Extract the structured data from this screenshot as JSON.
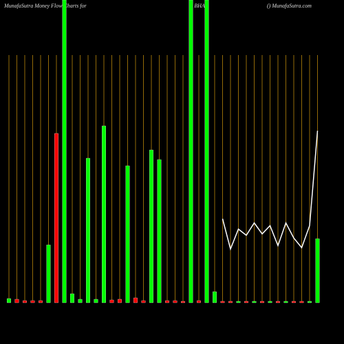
{
  "chart_data": {
    "type": "bar",
    "title": "MunafaSutra  Money Flow  Charts for",
    "symbol": "BHA",
    "source": "() MunafaSutra.com",
    "ylim": [
      0,
      440
    ],
    "series": [
      {
        "name": "Money Flow",
        "colors": [
          "#00ff00",
          "#ff0000",
          "#ff0000",
          "#ff0000",
          "#ff0000",
          "#00ff00",
          "#ff0000",
          "#00ff00",
          "#00ff00",
          "#00ff00",
          "#00ff00",
          "#00ff00",
          "#00ff00",
          "#ff0000",
          "#ff0000",
          "#00ff00",
          "#ff0000",
          "#ff0000",
          "#00ff00",
          "#00ff00",
          "#ff0000",
          "#ff0000",
          "#ff0000",
          "#00ff00",
          "#ff0000",
          "#00ff00",
          "#00ff00",
          "#ff0000",
          "#ff0000",
          "#00ff00",
          "#ff0000",
          "#00ff00",
          "#ff0000",
          "#00ff00",
          "#ff0000",
          "#00ff00",
          "#ff0000",
          "#ff0000",
          "#00ff00",
          "#00ff00"
        ],
        "values": [
          6,
          5,
          3,
          3,
          3,
          84,
          246,
          440,
          13,
          5,
          210,
          5,
          257,
          4,
          5,
          199,
          7,
          3,
          222,
          208,
          3,
          3,
          2,
          440,
          3,
          440,
          16,
          2,
          2,
          2,
          2,
          2,
          2,
          2,
          2,
          2,
          2,
          2,
          2,
          93
        ]
      },
      {
        "name": "Price",
        "type": "line",
        "color": "#ffffff",
        "values": [
          null,
          null,
          null,
          null,
          null,
          null,
          null,
          null,
          null,
          null,
          null,
          null,
          null,
          null,
          null,
          null,
          null,
          null,
          null,
          null,
          null,
          null,
          null,
          null,
          null,
          null,
          null,
          122,
          78,
          107,
          98,
          116,
          100,
          112,
          83,
          116,
          94,
          80,
          112,
          250
        ]
      }
    ],
    "gridline_color": "#b8860b"
  }
}
